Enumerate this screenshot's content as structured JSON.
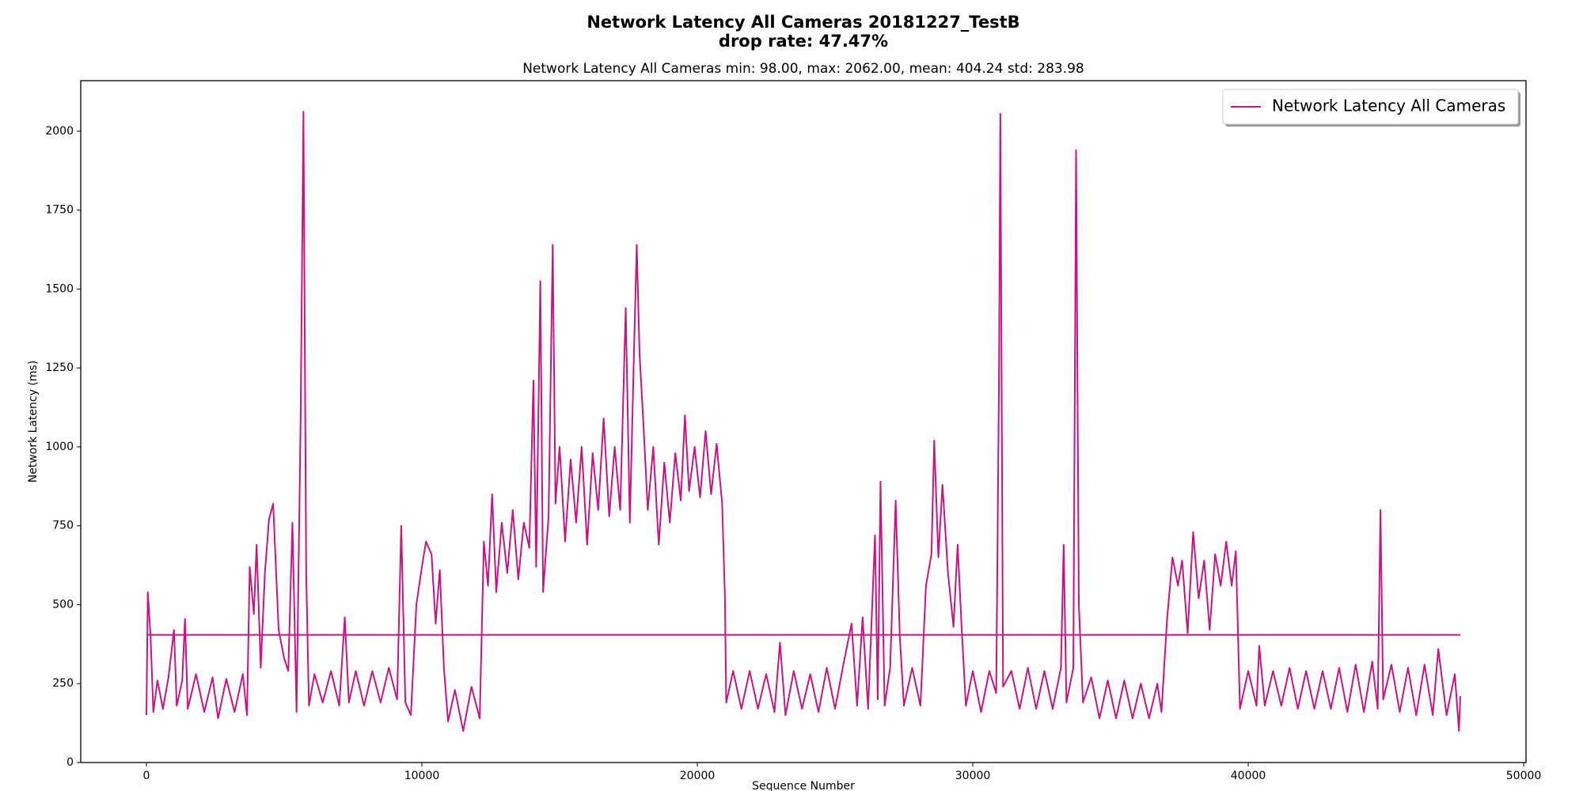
{
  "chart_data": {
    "type": "line",
    "title": "Network Latency All Cameras 20181227_TestB",
    "title2": "drop rate: 47.47%",
    "subtitle": "Network Latency All Cameras min: 98.00, max: 2062.00, mean: 404.24 std: 283.98",
    "xlabel": "Sequence Number",
    "ylabel": "Network Latency (ms)",
    "xlim": [
      -2385,
      50085
    ],
    "xticks": [
      0,
      10000,
      20000,
      30000,
      40000,
      50000
    ],
    "ylim": [
      0,
      2160
    ],
    "yticks": [
      0,
      250,
      500,
      750,
      1000,
      1250,
      1500,
      1750,
      2000
    ],
    "grid": false,
    "legend": "upper right",
    "hline": {
      "y": 404.24,
      "xmin": 0,
      "xmax": 47700,
      "color": "#c71585"
    },
    "series": [
      {
        "name": "Network Latency All Cameras",
        "color": "#c71585",
        "x": [
          0,
          50,
          150,
          250,
          400,
          600,
          800,
          1000,
          1100,
          1300,
          1400,
          1500,
          1800,
          2100,
          2400,
          2600,
          2900,
          3200,
          3500,
          3650,
          3750,
          3900,
          4000,
          4150,
          4300,
          4450,
          4600,
          4800,
          5000,
          5150,
          5300,
          5450,
          5600,
          5700,
          5800,
          5900,
          6100,
          6400,
          6700,
          7000,
          7200,
          7350,
          7600,
          7900,
          8200,
          8500,
          8800,
          9100,
          9250,
          9400,
          9600,
          9800,
          10000,
          10150,
          10350,
          10500,
          10650,
          10800,
          10950,
          11200,
          11500,
          11800,
          12100,
          12250,
          12400,
          12550,
          12700,
          12900,
          13100,
          13300,
          13500,
          13700,
          13900,
          14050,
          14150,
          14300,
          14400,
          14600,
          14750,
          14850,
          15000,
          15200,
          15400,
          15600,
          15800,
          16000,
          16200,
          16400,
          16600,
          16800,
          17000,
          17200,
          17400,
          17550,
          17700,
          17800,
          17900,
          18050,
          18200,
          18400,
          18600,
          18800,
          19000,
          19200,
          19400,
          19550,
          19700,
          19900,
          20100,
          20300,
          20500,
          20700,
          20900,
          21000,
          21050,
          21300,
          21600,
          21900,
          22200,
          22500,
          22800,
          23000,
          23200,
          23500,
          23800,
          24100,
          24400,
          24700,
          25000,
          25300,
          25600,
          25800,
          26000,
          26200,
          26450,
          26550,
          26650,
          26800,
          27000,
          27200,
          27350,
          27500,
          27800,
          28100,
          28300,
          28500,
          28600,
          28750,
          28900,
          29100,
          29300,
          29450,
          29600,
          29750,
          30000,
          30300,
          30600,
          30850,
          30950,
          31000,
          31100,
          31400,
          31700,
          32000,
          32300,
          32600,
          32900,
          33200,
          33300,
          33400,
          33650,
          33750,
          33850,
          34000,
          34300,
          34600,
          34900,
          35200,
          35500,
          35800,
          36100,
          36400,
          36700,
          36850,
          37050,
          37250,
          37450,
          37600,
          37800,
          38000,
          38200,
          38400,
          38600,
          38800,
          39000,
          39200,
          39400,
          39550,
          39700,
          40000,
          40300,
          40400,
          40600,
          40900,
          41200,
          41500,
          41800,
          42100,
          42400,
          42700,
          43000,
          43300,
          43600,
          43900,
          44200,
          44500,
          44700,
          44800,
          44900,
          45200,
          45500,
          45800,
          46100,
          46400,
          46700,
          46900,
          47200,
          47500,
          47650,
          47700
        ],
        "values": [
          150,
          540,
          400,
          160,
          260,
          170,
          270,
          420,
          180,
          260,
          455,
          170,
          280,
          160,
          270,
          140,
          265,
          160,
          280,
          150,
          620,
          470,
          690,
          300,
          600,
          770,
          820,
          420,
          330,
          290,
          760,
          160,
          1100,
          2062,
          600,
          180,
          280,
          190,
          290,
          180,
          460,
          190,
          290,
          180,
          290,
          190,
          300,
          200,
          750,
          190,
          150,
          500,
          620,
          700,
          660,
          440,
          610,
          300,
          130,
          230,
          100,
          240,
          140,
          700,
          560,
          850,
          540,
          760,
          600,
          800,
          580,
          760,
          680,
          1210,
          620,
          1525,
          540,
          780,
          1640,
          820,
          1000,
          700,
          960,
          760,
          1000,
          690,
          980,
          800,
          1090,
          780,
          1000,
          800,
          1440,
          760,
          1300,
          1640,
          1300,
          1060,
          800,
          1000,
          690,
          950,
          760,
          980,
          830,
          1100,
          860,
          1000,
          840,
          1050,
          850,
          1010,
          820,
          530,
          190,
          290,
          170,
          290,
          170,
          280,
          160,
          380,
          150,
          290,
          170,
          280,
          160,
          300,
          170,
          310,
          440,
          180,
          460,
          170,
          720,
          200,
          890,
          180,
          300,
          830,
          400,
          180,
          300,
          180,
          560,
          660,
          1020,
          650,
          880,
          600,
          430,
          690,
          420,
          180,
          290,
          160,
          290,
          220,
          1200,
          2055,
          240,
          290,
          170,
          300,
          170,
          290,
          170,
          300,
          690,
          190,
          300,
          1940,
          500,
          190,
          270,
          140,
          260,
          140,
          260,
          140,
          250,
          140,
          250,
          160,
          450,
          650,
          560,
          640,
          410,
          730,
          520,
          640,
          420,
          660,
          560,
          700,
          560,
          670,
          170,
          290,
          180,
          370,
          180,
          290,
          180,
          300,
          170,
          290,
          170,
          290,
          170,
          300,
          160,
          310,
          160,
          320,
          170,
          800,
          200,
          310,
          160,
          300,
          150,
          310,
          150,
          360,
          150,
          280,
          100,
          210
        ]
      }
    ]
  }
}
